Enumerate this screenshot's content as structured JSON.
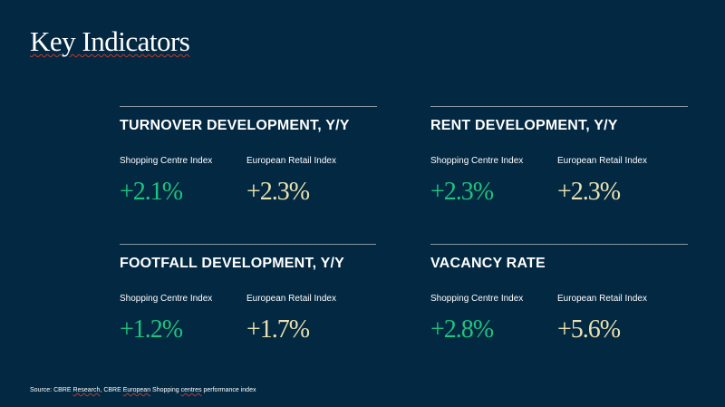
{
  "slide": {
    "title": "Key Indicators",
    "colors": {
      "background": "#032842",
      "shopping_centre_value": "#1ec37f",
      "european_retail_value": "#e8e2b0"
    },
    "indicators": [
      {
        "heading": "TURNOVER DEVELOPMENT, Y/Y",
        "labels": [
          "Shopping Centre Index",
          "European Retail Index"
        ],
        "values": [
          "+2.1%",
          "+2.3%"
        ]
      },
      {
        "heading": "RENT DEVELOPMENT, Y/Y",
        "labels": [
          "Shopping Centre Index",
          "European Retail Index"
        ],
        "values": [
          "+2.3%",
          "+2.3%"
        ]
      },
      {
        "heading": "FOOTFALL DEVELOPMENT, Y/Y",
        "labels": [
          "Shopping Centre Index",
          "European Retail Index"
        ],
        "values": [
          "+1.2%",
          "+1.7%"
        ]
      },
      {
        "heading": "VACANCY RATE",
        "labels": [
          "Shopping Centre Index",
          "European Retail Index"
        ],
        "values": [
          "+2.8%",
          "+5.6%"
        ]
      }
    ],
    "source": {
      "prefix": "Source: CBRE ",
      "w1": "Research",
      "mid1": ", CBRE ",
      "w2": "European",
      "mid2": " Shopping ",
      "w3": "centres",
      "suffix": " performance index"
    }
  }
}
